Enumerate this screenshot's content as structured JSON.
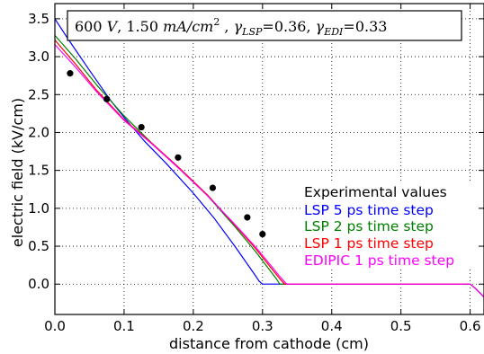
{
  "chart_data": {
    "type": "line",
    "title_parts": {
      "voltage": "600",
      "voltage_unit": "V",
      "current": "1.50",
      "current_unit": "mA/cm",
      "current_exp": "2",
      "gamma_lsp_label": "LSP",
      "gamma_lsp_value": "=0.36,",
      "gamma_edi_label": "EDI",
      "gamma_edi_value": "=0.33"
    },
    "xlabel": "distance from cathode (cm)",
    "ylabel": "electric field (kV/cm)",
    "xlim": [
      0.0,
      0.62
    ],
    "ylim": [
      -0.4,
      3.7
    ],
    "xticks": [
      0.0,
      0.1,
      0.2,
      0.3,
      0.4,
      0.5,
      0.6
    ],
    "xtick_labels": [
      "0.0",
      "0.1",
      "0.2",
      "0.3",
      "0.4",
      "0.5",
      "0.6"
    ],
    "yticks": [
      0.0,
      0.5,
      1.0,
      1.5,
      2.0,
      2.5,
      3.0,
      3.5
    ],
    "ytick_labels": [
      "0.0",
      "0.5",
      "1.0",
      "1.5",
      "2.0",
      "2.5",
      "3.0",
      "3.5"
    ],
    "grid": true,
    "legend_position": "right",
    "experimental": {
      "name": "Experimental values",
      "color": "#000000",
      "x": [
        0.022,
        0.075,
        0.125,
        0.178,
        0.228,
        0.278,
        0.3
      ],
      "y": [
        2.78,
        2.44,
        2.07,
        1.67,
        1.27,
        0.88,
        0.66
      ]
    },
    "series": [
      {
        "name": "LSP 5 ps time step",
        "color": "#0000ff",
        "x": [
          0.0,
          0.02,
          0.05,
          0.08,
          0.1,
          0.13,
          0.16,
          0.2,
          0.23,
          0.26,
          0.28,
          0.29,
          0.295,
          0.3,
          0.34,
          0.4,
          0.5,
          0.6,
          0.608,
          0.62
        ],
        "y": [
          3.5,
          3.22,
          2.82,
          2.43,
          2.2,
          1.88,
          1.6,
          1.2,
          0.87,
          0.5,
          0.24,
          0.11,
          0.04,
          0.0,
          0.0,
          0.0,
          0.0,
          0.0,
          -0.06,
          -0.17
        ]
      },
      {
        "name": "LSP 2 ps time step",
        "color": "#008000",
        "x": [
          0.0,
          0.03,
          0.06,
          0.1,
          0.14,
          0.18,
          0.22,
          0.26,
          0.29,
          0.31,
          0.32,
          0.325,
          0.4,
          0.5,
          0.6,
          0.608,
          0.62
        ],
        "y": [
          3.28,
          2.97,
          2.63,
          2.22,
          1.86,
          1.52,
          1.17,
          0.76,
          0.43,
          0.19,
          0.07,
          0.0,
          0.0,
          0.0,
          0.0,
          -0.06,
          -0.17
        ]
      },
      {
        "name": "LSP 1 ps time step",
        "color": "#ff0000",
        "x": [
          0.0,
          0.03,
          0.06,
          0.1,
          0.14,
          0.18,
          0.22,
          0.26,
          0.29,
          0.31,
          0.325,
          0.332,
          0.4,
          0.5,
          0.6,
          0.608,
          0.62
        ],
        "y": [
          3.22,
          2.9,
          2.56,
          2.17,
          1.86,
          1.53,
          1.18,
          0.78,
          0.47,
          0.24,
          0.07,
          0.0,
          0.0,
          0.0,
          0.0,
          -0.06,
          -0.17
        ]
      },
      {
        "name": "EDIPIC 1 ps time step",
        "color": "#ff00ff",
        "x": [
          0.0,
          0.03,
          0.06,
          0.1,
          0.14,
          0.18,
          0.22,
          0.26,
          0.29,
          0.31,
          0.325,
          0.335,
          0.4,
          0.5,
          0.6,
          0.608,
          0.62
        ],
        "y": [
          3.16,
          2.86,
          2.54,
          2.16,
          1.85,
          1.52,
          1.17,
          0.79,
          0.49,
          0.27,
          0.1,
          0.0,
          0.0,
          0.0,
          0.0,
          -0.06,
          -0.17
        ]
      }
    ]
  }
}
